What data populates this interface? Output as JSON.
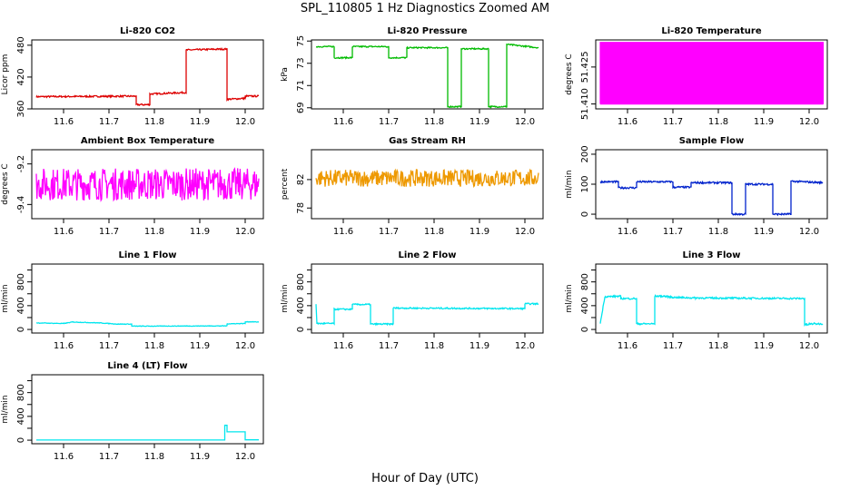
{
  "figure": {
    "title": "SPL_110805  1 Hz Diagnostics Zoomed AM",
    "xlabel": "Hour of Day (UTC)"
  },
  "chart_data": [
    {
      "type": "line",
      "title": "Li-820 CO2",
      "ylabel": "Licor ppm",
      "color": "#dd0000",
      "xlim": [
        11.53,
        12.04
      ],
      "ylim": [
        360,
        490
      ],
      "xticks": [
        11.6,
        11.7,
        11.8,
        11.9,
        12.0
      ],
      "yticks": [
        360,
        420,
        480
      ],
      "ytick_labels": [
        "360",
        "420",
        "480"
      ],
      "noise": 1.5,
      "points": [
        [
          11.54,
          383
        ],
        [
          11.76,
          384
        ],
        [
          11.76,
          368
        ],
        [
          11.79,
          368
        ],
        [
          11.79,
          388
        ],
        [
          11.87,
          391
        ],
        [
          11.87,
          471
        ],
        [
          11.96,
          473
        ],
        [
          11.96,
          378
        ],
        [
          12.0,
          380
        ],
        [
          12.0,
          384
        ],
        [
          12.03,
          384
        ]
      ]
    },
    {
      "type": "line",
      "title": "Li-820 Pressure",
      "ylabel": "kPa",
      "color": "#00bb00",
      "xlim": [
        11.53,
        12.04
      ],
      "ylim": [
        68.9,
        75.1
      ],
      "xticks": [
        11.6,
        11.7,
        11.8,
        11.9,
        12.0
      ],
      "yticks": [
        69,
        71,
        73,
        75
      ],
      "ytick_labels": [
        "69",
        "71",
        "73",
        "75"
      ],
      "noise": 0.06,
      "points": [
        [
          11.54,
          74.5
        ],
        [
          11.58,
          74.5
        ],
        [
          11.58,
          73.5
        ],
        [
          11.62,
          73.5
        ],
        [
          11.62,
          74.5
        ],
        [
          11.7,
          74.5
        ],
        [
          11.7,
          73.5
        ],
        [
          11.74,
          73.5
        ],
        [
          11.74,
          74.4
        ],
        [
          11.83,
          74.4
        ],
        [
          11.83,
          69.1
        ],
        [
          11.86,
          69.1
        ],
        [
          11.86,
          74.3
        ],
        [
          11.92,
          74.3
        ],
        [
          11.92,
          69.1
        ],
        [
          11.96,
          69.1
        ],
        [
          11.96,
          74.7
        ],
        [
          12.03,
          74.4
        ]
      ]
    },
    {
      "type": "line",
      "title": "Li-820 Temperature",
      "ylabel": "degrees C",
      "color": "#ff00ff",
      "xlim": [
        11.53,
        12.04
      ],
      "ylim": [
        51.408,
        51.436
      ],
      "xticks": [
        11.6,
        11.7,
        11.8,
        11.9,
        12.0
      ],
      "yticks": [
        51.41,
        51.425
      ],
      "ytick_labels": [
        "51.410",
        "51.425"
      ],
      "toggle_between": [
        51.41,
        51.435
      ],
      "x_range": [
        11.54,
        12.03
      ]
    },
    {
      "type": "line",
      "title": "Ambient Box Temperature",
      "ylabel": "degrees C",
      "color": "#ff00ff",
      "xlim": [
        11.53,
        12.04
      ],
      "ylim": [
        -9.47,
        -9.13
      ],
      "xticks": [
        11.6,
        11.7,
        11.8,
        11.9,
        12.0
      ],
      "yticks": [
        -9.4,
        -9.2
      ],
      "ytick_labels": [
        "-9.4",
        "-9.2"
      ],
      "noise": 0.08,
      "points": [
        [
          11.54,
          -9.3
        ],
        [
          12.03,
          -9.3
        ]
      ]
    },
    {
      "type": "line",
      "title": "Gas Stream RH",
      "ylabel": "percent",
      "color": "#ee9900",
      "xlim": [
        11.53,
        12.04
      ],
      "ylim": [
        76.5,
        86.2
      ],
      "xticks": [
        11.6,
        11.7,
        11.8,
        11.9,
        12.0
      ],
      "yticks": [
        78,
        82
      ],
      "ytick_labels": [
        "78",
        "82"
      ],
      "noise": 1.2,
      "points": [
        [
          11.54,
          82.2
        ],
        [
          12.03,
          82.2
        ]
      ]
    },
    {
      "type": "line",
      "title": "Sample Flow",
      "ylabel": "ml/min",
      "color": "#0022cc",
      "xlim": [
        11.53,
        12.04
      ],
      "ylim": [
        -15,
        215
      ],
      "xticks": [
        11.6,
        11.7,
        11.8,
        11.9,
        12.0
      ],
      "yticks": [
        0,
        100,
        200
      ],
      "ytick_labels": [
        "0",
        "100",
        "200"
      ],
      "noise": 3,
      "points": [
        [
          11.54,
          108
        ],
        [
          11.58,
          108
        ],
        [
          11.58,
          88
        ],
        [
          11.62,
          88
        ],
        [
          11.62,
          108
        ],
        [
          11.7,
          108
        ],
        [
          11.7,
          90
        ],
        [
          11.74,
          90
        ],
        [
          11.74,
          105
        ],
        [
          11.83,
          105
        ],
        [
          11.83,
          0
        ],
        [
          11.86,
          0
        ],
        [
          11.86,
          100
        ],
        [
          11.92,
          100
        ],
        [
          11.92,
          0
        ],
        [
          11.96,
          0
        ],
        [
          11.96,
          110
        ],
        [
          12.03,
          105
        ]
      ]
    },
    {
      "type": "line",
      "title": "Line 1 Flow",
      "ylabel": "ml/min",
      "color": "#00e5ee",
      "xlim": [
        11.53,
        12.04
      ],
      "ylim": [
        -60,
        1100
      ],
      "xticks": [
        11.6,
        11.7,
        11.8,
        11.9,
        12.0
      ],
      "yticks": [
        0,
        200,
        400,
        600,
        800,
        1000
      ],
      "ytick_labels": [
        "0",
        "",
        "400",
        "",
        "800",
        ""
      ],
      "noise": 5,
      "points": [
        [
          11.54,
          110
        ],
        [
          11.6,
          100
        ],
        [
          11.62,
          125
        ],
        [
          11.68,
          110
        ],
        [
          11.72,
          90
        ],
        [
          11.75,
          90
        ],
        [
          11.75,
          55
        ],
        [
          11.96,
          60
        ],
        [
          11.96,
          95
        ],
        [
          12.0,
          100
        ],
        [
          12.0,
          130
        ],
        [
          12.03,
          125
        ]
      ]
    },
    {
      "type": "line",
      "title": "Line 2 Flow",
      "ylabel": "ml/min",
      "color": "#00e5ee",
      "xlim": [
        11.53,
        12.04
      ],
      "ylim": [
        -60,
        1100
      ],
      "xticks": [
        11.6,
        11.7,
        11.8,
        11.9,
        12.0
      ],
      "yticks": [
        0,
        200,
        400,
        600,
        800,
        1000
      ],
      "ytick_labels": [
        "0",
        "",
        "400",
        "",
        "800",
        ""
      ],
      "noise": 12,
      "points": [
        [
          11.54,
          430
        ],
        [
          11.542,
          100
        ],
        [
          11.58,
          100
        ],
        [
          11.58,
          340
        ],
        [
          11.62,
          340
        ],
        [
          11.62,
          420
        ],
        [
          11.66,
          420
        ],
        [
          11.66,
          90
        ],
        [
          11.71,
          90
        ],
        [
          11.71,
          360
        ],
        [
          12.0,
          350
        ],
        [
          12.0,
          430
        ],
        [
          12.03,
          430
        ]
      ]
    },
    {
      "type": "line",
      "title": "Line 3 Flow",
      "ylabel": "ml/min",
      "color": "#00e5ee",
      "xlim": [
        11.53,
        12.04
      ],
      "ylim": [
        -60,
        1100
      ],
      "xticks": [
        11.6,
        11.7,
        11.8,
        11.9,
        12.0
      ],
      "yticks": [
        0,
        200,
        400,
        600,
        800,
        1000
      ],
      "ytick_labels": [
        "0",
        "",
        "400",
        "",
        "800",
        ""
      ],
      "noise": 14,
      "points": [
        [
          11.54,
          100
        ],
        [
          11.55,
          550
        ],
        [
          11.585,
          560
        ],
        [
          11.585,
          520
        ],
        [
          11.62,
          520
        ],
        [
          11.62,
          95
        ],
        [
          11.66,
          95
        ],
        [
          11.66,
          560
        ],
        [
          11.68,
          560
        ],
        [
          11.7,
          540
        ],
        [
          11.75,
          530
        ],
        [
          11.99,
          520
        ],
        [
          11.99,
          80
        ],
        [
          12.0,
          80
        ],
        [
          12.0,
          95
        ],
        [
          12.03,
          95
        ]
      ]
    },
    {
      "type": "line",
      "title": "Line 4 (LT) Flow",
      "ylabel": "ml/min",
      "color": "#00e5ee",
      "xlim": [
        11.53,
        12.04
      ],
      "ylim": [
        -60,
        1100
      ],
      "xticks": [
        11.6,
        11.7,
        11.8,
        11.9,
        12.0
      ],
      "yticks": [
        0,
        200,
        400,
        600,
        800,
        1000
      ],
      "ytick_labels": [
        "0",
        "",
        "400",
        "",
        "800",
        ""
      ],
      "noise": 0,
      "points": [
        [
          11.54,
          2
        ],
        [
          11.955,
          2
        ],
        [
          11.955,
          250
        ],
        [
          11.96,
          250
        ],
        [
          11.96,
          140
        ],
        [
          12.0,
          140
        ],
        [
          12.0,
          5
        ],
        [
          12.03,
          5
        ]
      ]
    }
  ]
}
